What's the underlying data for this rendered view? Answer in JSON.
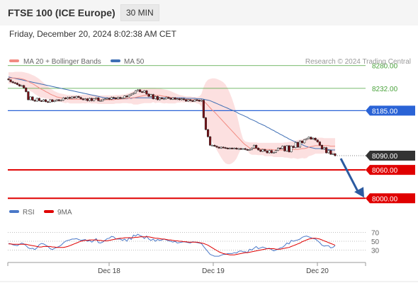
{
  "header": {
    "title": "FTSE 100 (ICE Europe)",
    "interval": "30 MIN",
    "datetime": "Friday, December 20, 2024 8:02:38 AM CET"
  },
  "colors": {
    "ma20": "#f28b82",
    "ma50": "#3f6fb5",
    "bollinger_fill": "#fbd5d5",
    "resistance": "#4aa33c",
    "pivot": "#2a63d6",
    "support": "#e00000",
    "last_price_bg": "#333333",
    "arrow": "#2b5aa0",
    "candle_up": "#ffffff",
    "candle_down": "#7a0f16",
    "rsi": "#4a78c8",
    "rsi_ma": "#e00000"
  },
  "chart_data": [
    {
      "type": "candlestick",
      "legend": [
        {
          "name": "MA 20 + Bollinger Bands",
          "color": "#f28b82"
        },
        {
          "name": "MA 50",
          "color": "#3f6fb5"
        }
      ],
      "credit": "Research © 2024 Trading Central",
      "x_ticks": [
        "Dec 18",
        "Dec 19",
        "Dec 20"
      ],
      "ylim": [
        7990,
        8305
      ],
      "levels": [
        {
          "value": 8280.0,
          "label": "8280.00",
          "kind": "resistance"
        },
        {
          "value": 8232.0,
          "label": "8232.00",
          "kind": "resistance"
        },
        {
          "value": 8185.0,
          "label": "8185.00",
          "kind": "pivot"
        },
        {
          "value": 8090.0,
          "label": "8090.00",
          "kind": "last"
        },
        {
          "value": 8060.0,
          "label": "8060.00",
          "kind": "support"
        },
        {
          "value": 8000.0,
          "label": "8000.00",
          "kind": "support"
        }
      ],
      "close": [
        8250,
        8246,
        8244,
        8243,
        8240,
        8237,
        8238,
        8233,
        8225,
        8208,
        8214,
        8207,
        8205,
        8211,
        8206,
        8205,
        8208,
        8204,
        8203,
        8208,
        8204,
        8206,
        8208,
        8206,
        8207,
        8212,
        8210,
        8213,
        8211,
        8214,
        8212,
        8215,
        8213,
        8210,
        8208,
        8210,
        8206,
        8211,
        8206,
        8210,
        8212,
        8206,
        8206,
        8209,
        8210,
        8211,
        8209,
        8213,
        8212,
        8210,
        8213,
        8211,
        8212,
        8216,
        8214,
        8218,
        8220,
        8222,
        8227,
        8229,
        8225,
        8224,
        8227,
        8220,
        8215,
        8219,
        8210,
        8215,
        8208,
        8212,
        8210,
        8210,
        8213,
        8211,
        8209,
        8212,
        8209,
        8210,
        8208,
        8210,
        8208,
        8205,
        8208,
        8206,
        8205,
        8208,
        8207,
        8205,
        8207,
        8170,
        8145,
        8130,
        8112,
        8112,
        8110,
        8108,
        8106,
        8108,
        8107,
        8106,
        8105,
        8106,
        8105,
        8106,
        8104,
        8105,
        8104,
        8105,
        8103,
        8102,
        8103,
        8106,
        8112,
        8106,
        8102,
        8099,
        8103,
        8100,
        8096,
        8101,
        8096,
        8097,
        8101,
        8106,
        8105,
        8110,
        8100,
        8111,
        8098,
        8110,
        8107,
        8118,
        8108,
        8121,
        8117,
        8124,
        8126,
        8129,
        8125,
        8127,
        8123,
        8119,
        8112,
        8104,
        8107,
        8096,
        8101,
        8093,
        8094,
        8090
      ],
      "ma20": [
        8254,
        8254,
        8254,
        8254,
        8253,
        8253,
        8252,
        8251,
        8249,
        8247,
        8244,
        8242,
        8239,
        8236,
        8233,
        8230,
        8228,
        8225,
        8223,
        8220,
        8218,
        8216,
        8214,
        8213,
        8212,
        8211,
        8210,
        8210,
        8209,
        8209,
        8209,
        8209,
        8209,
        8209,
        8210,
        8209,
        8210,
        8210,
        8209,
        8209,
        8209,
        8208,
        8208,
        8208,
        8208,
        8208,
        8208,
        8208,
        8208,
        8209,
        8209,
        8209,
        8210,
        8210,
        8211,
        8211,
        8212,
        8212,
        8213,
        8214,
        8215,
        8216,
        8217,
        8217,
        8217,
        8217,
        8218,
        8217,
        8217,
        8217,
        8216,
        8215,
        8215,
        8214,
        8213,
        8212,
        8211,
        8211,
        8210,
        8210,
        8209,
        8209,
        8209,
        8208,
        8208,
        8208,
        8207,
        8207,
        8207,
        8205,
        8201,
        8196,
        8191,
        8186,
        8182,
        8177,
        8172,
        8167,
        8162,
        8157,
        8152,
        8147,
        8142,
        8137,
        8132,
        8127,
        8122,
        8117,
        8113,
        8110,
        8106,
        8105,
        8105,
        8105,
        8104,
        8104,
        8104,
        8103,
        8103,
        8103,
        8103,
        8102,
        8102,
        8102,
        8102,
        8102,
        8102,
        8102,
        8102,
        8102,
        8103,
        8103,
        8103,
        8104,
        8105,
        8105,
        8106,
        8108,
        8109,
        8110,
        8111,
        8111,
        8111,
        8111,
        8111,
        8111,
        8111,
        8110,
        8110,
        8110
      ],
      "ma50": [
        8256,
        8255,
        8254,
        8253,
        8252,
        8251,
        8250,
        8249,
        8248,
        8247,
        8246,
        8245,
        8244,
        8243,
        8242,
        8241,
        8240,
        8239,
        8238,
        8237,
        8236,
        8235,
        8234,
        8233,
        8232,
        8231,
        8230,
        8229,
        8228,
        8227,
        8226,
        8225,
        8224,
        8223,
        8222,
        8221,
        8220,
        8219,
        8218,
        8217,
        8216,
        8215,
        8214,
        8213,
        8212,
        8212,
        8211,
        8211,
        8210,
        8210,
        8210,
        8210,
        8210,
        8210,
        8210,
        8211,
        8211,
        8212,
        8212,
        8212,
        8212,
        8212,
        8212,
        8212,
        8212,
        8212,
        8212,
        8212,
        8212,
        8212,
        8212,
        8212,
        8212,
        8212,
        8212,
        8212,
        8212,
        8212,
        8212,
        8212,
        8212,
        8211,
        8211,
        8211,
        8211,
        8211,
        8210,
        8210,
        8210,
        8209,
        8208,
        8207,
        8206,
        8204,
        8202,
        8200,
        8198,
        8196,
        8194,
        8192,
        8190,
        8188,
        8186,
        8184,
        8182,
        8179,
        8177,
        8175,
        8173,
        8171,
        8168,
        8166,
        8164,
        8162,
        8159,
        8157,
        8155,
        8153,
        8150,
        8148,
        8145,
        8143,
        8140,
        8138,
        8135,
        8133,
        8130,
        8128,
        8125,
        8123,
        8121,
        8119,
        8117,
        8115,
        8113,
        8111,
        8109,
        8108,
        8107,
        8106,
        8105,
        8105,
        8105,
        8104,
        8104,
        8103,
        8103,
        8102,
        8102,
        8102
      ],
      "bb_upper": [
        8266,
        8266,
        8266,
        8267,
        8267,
        8267,
        8267,
        8266,
        8265,
        8264,
        8262,
        8260,
        8258,
        8255,
        8252,
        8248,
        8244,
        8240,
        8236,
        8232,
        8229,
        8226,
        8224,
        8222,
        8221,
        8220,
        8219,
        8218,
        8218,
        8218,
        8218,
        8218,
        8218,
        8218,
        8219,
        8218,
        8219,
        8219,
        8218,
        8218,
        8218,
        8217,
        8217,
        8217,
        8217,
        8217,
        8217,
        8217,
        8217,
        8218,
        8218,
        8218,
        8219,
        8219,
        8221,
        8222,
        8224,
        8226,
        8228,
        8230,
        8231,
        8232,
        8233,
        8233,
        8233,
        8233,
        8233,
        8233,
        8232,
        8232,
        8231,
        8230,
        8229,
        8228,
        8226,
        8224,
        8222,
        8220,
        8218,
        8217,
        8216,
        8215,
        8215,
        8215,
        8214,
        8214,
        8214,
        8215,
        8220,
        8235,
        8245,
        8250,
        8252,
        8253,
        8253,
        8252,
        8250,
        8248,
        8245,
        8240,
        8232,
        8222,
        8210,
        8196,
        8180,
        8160,
        8140,
        8125,
        8120,
        8119,
        8118,
        8118,
        8118,
        8118,
        8117,
        8117,
        8117,
        8117,
        8117,
        8117,
        8117,
        8117,
        8117,
        8117,
        8117,
        8117,
        8118,
        8118,
        8119,
        8120,
        8121,
        8122,
        8123,
        8124,
        8125,
        8126,
        8127,
        8127,
        8128,
        8128,
        8128,
        8128,
        8128,
        8128,
        8127,
        8127,
        8127,
        8127,
        8127,
        8127
      ],
      "bb_lower": [
        8242,
        8242,
        8242,
        8241,
        8239,
        8239,
        8237,
        8236,
        8233,
        8230,
        8226,
        8224,
        8220,
        8217,
        8214,
        8212,
        8212,
        8210,
        8210,
        8208,
        8207,
        8206,
        8204,
        8204,
        8203,
        8202,
        8201,
        8202,
        8200,
        8200,
        8200,
        8200,
        8200,
        8200,
        8201,
        8200,
        8201,
        8201,
        8200,
        8200,
        8200,
        8199,
        8199,
        8199,
        8199,
        8199,
        8199,
        8199,
        8199,
        8200,
        8200,
        8200,
        8201,
        8201,
        8201,
        8200,
        8200,
        8198,
        8198,
        8198,
        8199,
        8200,
        8201,
        8201,
        8201,
        8201,
        8203,
        8201,
        8202,
        8202,
        8201,
        8200,
        8201,
        8200,
        8200,
        8200,
        8200,
        8202,
        8202,
        8203,
        8202,
        8203,
        8203,
        8201,
        8202,
        8202,
        8200,
        8199,
        8194,
        8175,
        8157,
        8142,
        8130,
        8119,
        8111,
        8102,
        8094,
        8086,
        8079,
        8074,
        8072,
        8072,
        8074,
        8078,
        8084,
        8094,
        8104,
        8109,
        8106,
        8101,
        8094,
        8092,
        8092,
        8092,
        8091,
        8091,
        8091,
        8089,
        8089,
        8089,
        8089,
        8087,
        8087,
        8087,
        8087,
        8087,
        8086,
        8086,
        8085,
        8084,
        8085,
        8084,
        8083,
        8084,
        8085,
        8084,
        8085,
        8089,
        8090,
        8092,
        8094,
        8094,
        8094,
        8094,
        8095,
        8095,
        8095,
        8093,
        8093,
        8093
      ]
    },
    {
      "type": "line",
      "legend": [
        {
          "name": "RSI",
          "color": "#4a78c8"
        },
        {
          "name": "9MA",
          "color": "#e00000"
        }
      ],
      "ylim": [
        0,
        100
      ],
      "y_ticks": [
        70,
        50,
        30
      ],
      "rsi": [
        45,
        44,
        42,
        41,
        40,
        43,
        46,
        44,
        40,
        35,
        33,
        34,
        31,
        35,
        42,
        45,
        44,
        41,
        38,
        33,
        31,
        34,
        36,
        38,
        41,
        46,
        50,
        52,
        53,
        55,
        55,
        56,
        54,
        52,
        53,
        54,
        50,
        52,
        48,
        52,
        56,
        47,
        46,
        48,
        52,
        56,
        57,
        61,
        60,
        55,
        55,
        55,
        52,
        55,
        50,
        58,
        54,
        64,
        62,
        66,
        63,
        61,
        56,
        62,
        55,
        52,
        55,
        50,
        54,
        52,
        53,
        55,
        53,
        51,
        50,
        48,
        50,
        46,
        47,
        48,
        49,
        48,
        47,
        46,
        49,
        48,
        47,
        46,
        45,
        38,
        32,
        26,
        20,
        18,
        16,
        16,
        16,
        18,
        20,
        20,
        22,
        22,
        22,
        24,
        23,
        27,
        28,
        26,
        26,
        24,
        32,
        30,
        34,
        38,
        33,
        35,
        37,
        35,
        33,
        34,
        31,
        28,
        30,
        32,
        35,
        36,
        40,
        46,
        44,
        52,
        50,
        52,
        53,
        55,
        59,
        61,
        62,
        60,
        58,
        56,
        55,
        51,
        47,
        41,
        39,
        40,
        40,
        35,
        36,
        40
      ],
      "rsi_ma": [
        44,
        44,
        43,
        43,
        43,
        43,
        43,
        43,
        43,
        42,
        41,
        40,
        39,
        38,
        37,
        37,
        38,
        38,
        38,
        38,
        37,
        37,
        36,
        36,
        36,
        36,
        37,
        38,
        40,
        42,
        44,
        46,
        48,
        50,
        51,
        52,
        52,
        53,
        53,
        53,
        53,
        52,
        52,
        51,
        51,
        51,
        52,
        53,
        54,
        55,
        56,
        57,
        57,
        58,
        58,
        58,
        58,
        58,
        59,
        59,
        60,
        60,
        60,
        60,
        60,
        59,
        58,
        57,
        57,
        56,
        55,
        55,
        54,
        53,
        53,
        52,
        51,
        51,
        50,
        50,
        49,
        49,
        48,
        48,
        48,
        48,
        48,
        47,
        46,
        45,
        43,
        41,
        38,
        35,
        32,
        29,
        26,
        24,
        22,
        21,
        20,
        19,
        19,
        19,
        20,
        21,
        22,
        23,
        24,
        24,
        25,
        26,
        27,
        28,
        29,
        30,
        31,
        32,
        33,
        33,
        33,
        33,
        32,
        32,
        32,
        33,
        34,
        35,
        36,
        38,
        40,
        42,
        44,
        46,
        49,
        51,
        53,
        55,
        56,
        57,
        57,
        56,
        55,
        53,
        51,
        49,
        47,
        45,
        43,
        41
      ]
    }
  ]
}
